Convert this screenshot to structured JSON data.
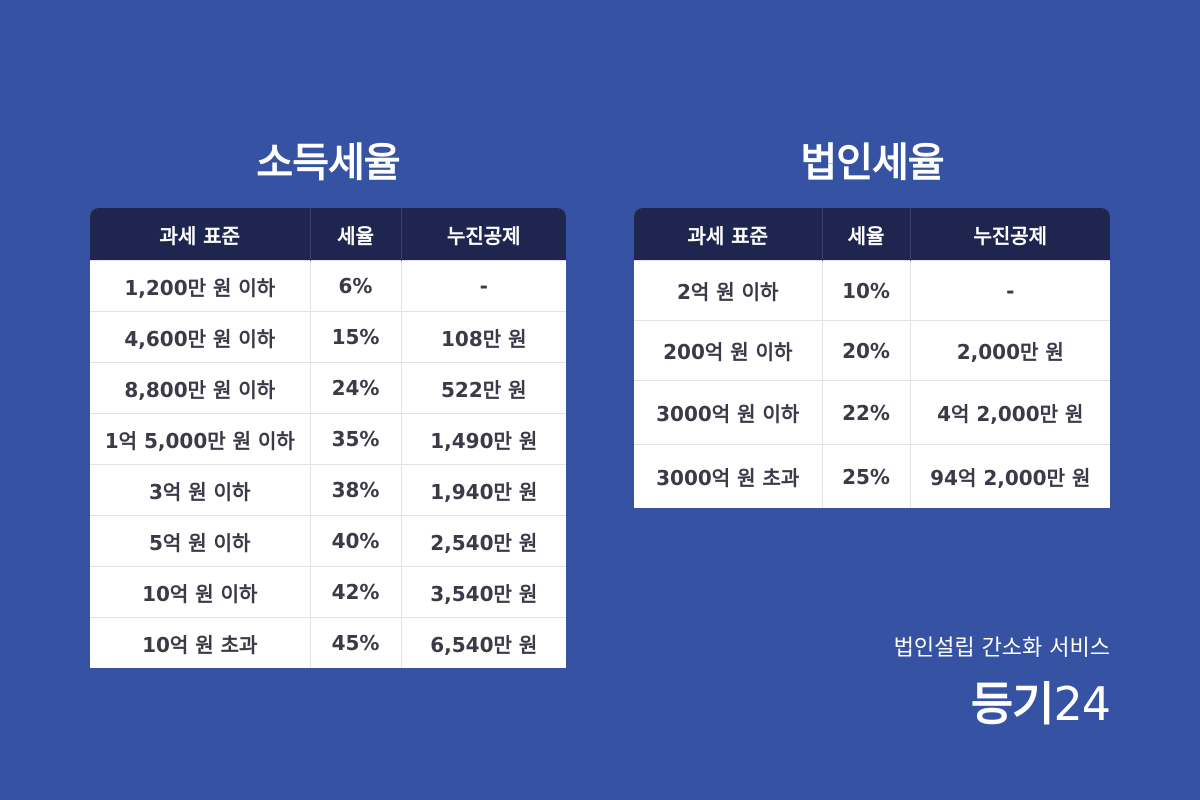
{
  "income_tax": {
    "title": "소득세율",
    "headers": [
      "과세 표준",
      "세율",
      "누진공제"
    ],
    "rows": [
      [
        "1,200만 원 이하",
        "6%",
        "-"
      ],
      [
        "4,600만 원 이하",
        "15%",
        "108만 원"
      ],
      [
        "8,800만 원 이하",
        "24%",
        "522만 원"
      ],
      [
        "1억 5,000만 원 이하",
        "35%",
        "1,490만 원"
      ],
      [
        "3억 원 이하",
        "38%",
        "1,940만 원"
      ],
      [
        "5억 원 이하",
        "40%",
        "2,540만 원"
      ],
      [
        "10억 원 이하",
        "42%",
        "3,540만 원"
      ],
      [
        "10억 원 초과",
        "45%",
        "6,540만 원"
      ]
    ]
  },
  "corporate_tax": {
    "title": "법인세율",
    "headers": [
      "과세 표준",
      "세율",
      "누진공제"
    ],
    "rows": [
      [
        "2억 원 이하",
        "10%",
        "-"
      ],
      [
        "200억 원 이하",
        "20%",
        "2,000만 원"
      ],
      [
        "3000억 원 이하",
        "22%",
        "4억 2,000만 원"
      ],
      [
        "3000억 원 초과",
        "25%",
        "94억 2,000만 원"
      ]
    ]
  },
  "brand": {
    "tagline": "법인설립 간소화 서비스",
    "logo_bold": "등기",
    "logo_light": "24"
  },
  "colors": {
    "background": "#3652a3",
    "header_bg": "#1e2650",
    "cell_text": "#3a3a48"
  }
}
